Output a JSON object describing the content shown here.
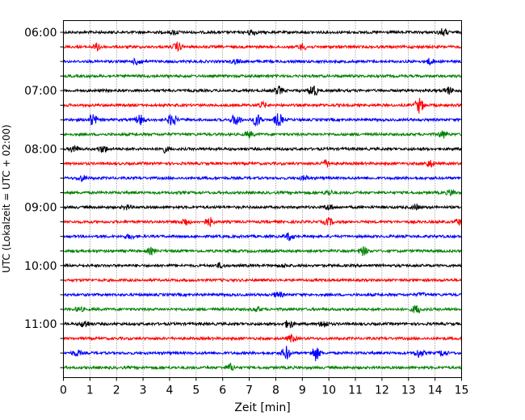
{
  "chart_data": {
    "type": "line",
    "xlabel": "Zeit  [min]",
    "ylabel": "UTC (Lokalzeit = UTC + 02:00)",
    "xlim": [
      0,
      15
    ],
    "x_ticks": [
      0,
      1,
      2,
      3,
      4,
      5,
      6,
      7,
      8,
      9,
      10,
      11,
      12,
      13,
      14,
      15
    ],
    "grid": "vertical dotted at each minute",
    "colors": [
      "#000000",
      "#ff0000",
      "#0000ff",
      "#008000"
    ],
    "y_tick_labels": [
      "06:00",
      "07:00",
      "08:00",
      "09:00",
      "10:00",
      "11:00"
    ],
    "traces": [
      {
        "start": "06:00",
        "color": "#000000",
        "events": [
          [
            7.1,
            0.4
          ],
          [
            4.2,
            0.3
          ],
          [
            14.3,
            0.5
          ]
        ]
      },
      {
        "start": "06:15",
        "color": "#ff0000",
        "events": [
          [
            1.3,
            0.5
          ],
          [
            4.3,
            0.6
          ],
          [
            9.0,
            0.4
          ]
        ]
      },
      {
        "start": "06:30",
        "color": "#0000ff",
        "events": [
          [
            2.8,
            0.5
          ],
          [
            6.5,
            0.3
          ],
          [
            13.8,
            0.4
          ]
        ]
      },
      {
        "start": "06:45",
        "color": "#008000",
        "events": []
      },
      {
        "start": "07:00",
        "color": "#000000",
        "events": [
          [
            8.1,
            0.6
          ],
          [
            9.4,
            0.9
          ],
          [
            14.5,
            0.5
          ]
        ]
      },
      {
        "start": "07:15",
        "color": "#ff0000",
        "events": [
          [
            7.5,
            0.4
          ],
          [
            13.4,
            1.0
          ]
        ]
      },
      {
        "start": "07:30",
        "color": "#0000ff",
        "events": [
          [
            1.1,
            0.8
          ],
          [
            2.9,
            0.7
          ],
          [
            4.1,
            0.9
          ],
          [
            6.5,
            0.8
          ],
          [
            7.3,
            0.9
          ],
          [
            8.1,
            0.9
          ]
        ]
      },
      {
        "start": "07:45",
        "color": "#008000",
        "events": [
          [
            7.0,
            0.4
          ],
          [
            14.3,
            0.5
          ]
        ]
      },
      {
        "start": "08:00",
        "color": "#000000",
        "events": [
          [
            0.4,
            0.5
          ],
          [
            1.5,
            0.5
          ],
          [
            3.8,
            0.4
          ]
        ]
      },
      {
        "start": "08:15",
        "color": "#ff0000",
        "events": [
          [
            9.9,
            0.5
          ],
          [
            13.8,
            0.5
          ]
        ]
      },
      {
        "start": "08:30",
        "color": "#0000ff",
        "events": [
          [
            0.7,
            0.4
          ],
          [
            9.1,
            0.3
          ]
        ]
      },
      {
        "start": "08:45",
        "color": "#008000",
        "events": [
          [
            10.0,
            0.3
          ],
          [
            14.6,
            0.4
          ]
        ]
      },
      {
        "start": "09:00",
        "color": "#000000",
        "events": [
          [
            2.4,
            0.3
          ],
          [
            10.0,
            0.4
          ],
          [
            13.3,
            0.3
          ]
        ]
      },
      {
        "start": "09:15",
        "color": "#ff0000",
        "events": [
          [
            4.6,
            0.5
          ],
          [
            5.5,
            0.6
          ],
          [
            10.0,
            0.5
          ],
          [
            14.9,
            0.4
          ]
        ]
      },
      {
        "start": "09:30",
        "color": "#0000ff",
        "events": [
          [
            2.5,
            0.3
          ],
          [
            8.5,
            0.5
          ]
        ]
      },
      {
        "start": "09:45",
        "color": "#008000",
        "events": [
          [
            3.3,
            0.4
          ],
          [
            11.3,
            0.6
          ]
        ]
      },
      {
        "start": "10:00",
        "color": "#000000",
        "events": [
          [
            5.9,
            0.3
          ],
          [
            8.3,
            0.2
          ]
        ]
      },
      {
        "start": "10:15",
        "color": "#ff0000",
        "events": []
      },
      {
        "start": "10:30",
        "color": "#0000ff",
        "events": [
          [
            8.1,
            0.4
          ],
          [
            13.5,
            0.2
          ]
        ]
      },
      {
        "start": "10:45",
        "color": "#008000",
        "events": [
          [
            0.6,
            0.3
          ],
          [
            7.3,
            0.3
          ],
          [
            13.3,
            0.6
          ]
        ]
      },
      {
        "start": "11:00",
        "color": "#000000",
        "events": [
          [
            0.8,
            0.5
          ],
          [
            8.5,
            0.6
          ],
          [
            9.8,
            0.5
          ]
        ]
      },
      {
        "start": "11:15",
        "color": "#ff0000",
        "events": [
          [
            8.6,
            0.5
          ]
        ]
      },
      {
        "start": "11:30",
        "color": "#0000ff",
        "events": [
          [
            0.5,
            0.4
          ],
          [
            8.4,
            0.9
          ],
          [
            9.5,
            1.0
          ],
          [
            13.4,
            0.6
          ],
          [
            14.3,
            0.4
          ]
        ]
      },
      {
        "start": "11:45",
        "color": "#008000",
        "events": [
          [
            6.3,
            0.5
          ]
        ]
      }
    ]
  }
}
